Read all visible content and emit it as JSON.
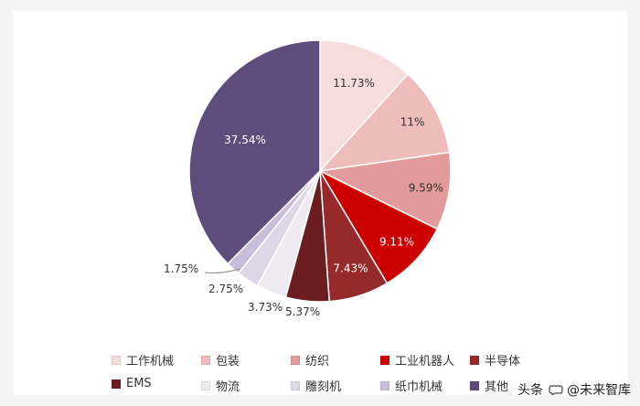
{
  "chart_data": {
    "type": "pie",
    "title": "",
    "start_angle_deg": 0,
    "direction": "clockwise",
    "slices": [
      {
        "label": "工作机械",
        "value": 11.73,
        "value_label": "11.73%",
        "color": "#f7dcdc",
        "label_color": "#333333"
      },
      {
        "label": "包装",
        "value": 11,
        "value_label": "11%",
        "color": "#efbcbc",
        "label_color": "#333333"
      },
      {
        "label": "纺织",
        "value": 9.59,
        "value_label": "9.59%",
        "color": "#e29a9a",
        "label_color": "#333333"
      },
      {
        "label": "工业机器人",
        "value": 9.11,
        "value_label": "9.11%",
        "color": "#cc0000",
        "label_color": "#ffffff"
      },
      {
        "label": "半导体",
        "value": 7.43,
        "value_label": "7.43%",
        "color": "#962a2a",
        "label_color": "#ffffff"
      },
      {
        "label": "EMS",
        "value": 5.37,
        "value_label": "5.37%",
        "color": "#6b1d20",
        "label_color": "#333333"
      },
      {
        "label": "物流",
        "value": 3.73,
        "value_label": "3.73%",
        "color": "#eeeaf1",
        "label_color": "#333333"
      },
      {
        "label": "雕刻机",
        "value": 2.75,
        "value_label": "2.75%",
        "color": "#ddd6e6",
        "label_color": "#333333"
      },
      {
        "label": "纸巾机械",
        "value": 1.75,
        "value_label": "1.75%",
        "color": "#c8bedc",
        "label_color": "#333333"
      },
      {
        "label": "其他",
        "value": 37.54,
        "value_label": "37.54%",
        "color": "#5e4c7d",
        "label_color": "#ffffff"
      }
    ]
  },
  "watermark": {
    "prefix": "头条",
    "handle": "@未来智库"
  }
}
